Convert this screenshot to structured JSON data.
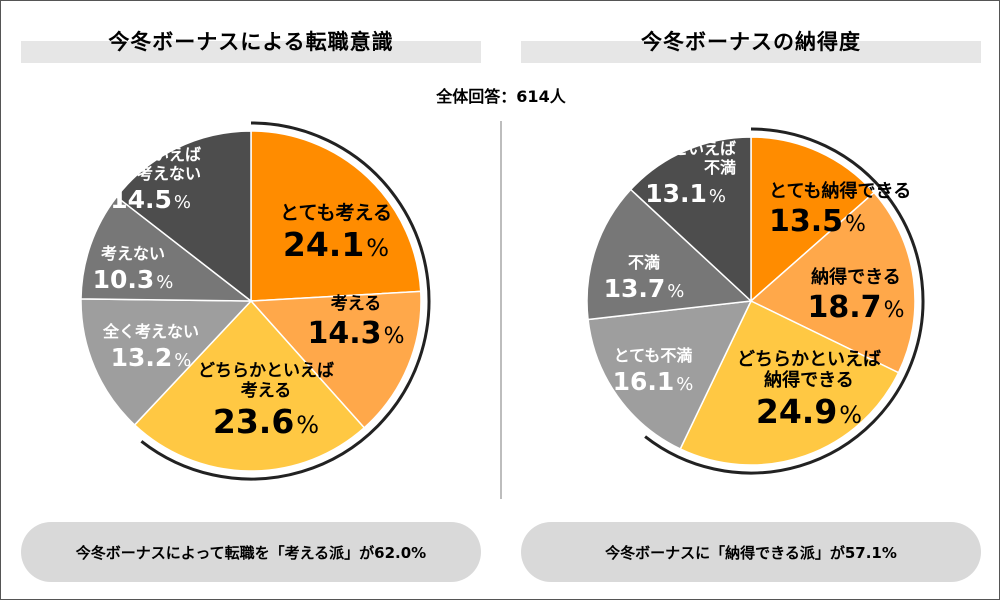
{
  "respondents": "全体回答：614人",
  "colors": {
    "orange": "#ff8c00",
    "light_orange": "#ffa84a",
    "yellow": "#ffc843",
    "gray_light": "#9e9e9e",
    "gray_mid": "#777777",
    "gray_dark": "#4d4d4d",
    "title_bar": "#e6e6e6",
    "pill": "#d9d9d9"
  },
  "left": {
    "title": "今冬ボーナスによる転職意識",
    "summary": "今冬ボーナスによって転職を「考える派」が62.0%"
  },
  "right": {
    "title": "今冬ボーナスの納得度",
    "summary": "今冬ボーナスに「納得できる派」が57.1%"
  },
  "chart_data": [
    {
      "type": "pie",
      "title": "今冬ボーナスによる転職意識",
      "unit": "%",
      "slices": [
        {
          "label": [
            "とても考える"
          ],
          "value": 24.1,
          "color": "#ff8c00"
        },
        {
          "label": [
            "考える"
          ],
          "value": 14.3,
          "color": "#ffa84a"
        },
        {
          "label": [
            "どちらかといえば",
            "考える"
          ],
          "value": 23.6,
          "color": "#ffc843"
        },
        {
          "label": [
            "全く考えない"
          ],
          "value": 13.2,
          "color": "#9e9e9e"
        },
        {
          "label": [
            "考えない"
          ],
          "value": 10.3,
          "color": "#777777"
        },
        {
          "label": [
            "どちらかといえば",
            "考えない"
          ],
          "value": 14.5,
          "color": "#4d4d4d"
        }
      ]
    },
    {
      "type": "pie",
      "title": "今冬ボーナスの納得度",
      "unit": "%",
      "slices": [
        {
          "label": [
            "とても納得できる"
          ],
          "value": 13.5,
          "color": "#ff8c00"
        },
        {
          "label": [
            "納得できる"
          ],
          "value": 18.7,
          "color": "#ffa84a"
        },
        {
          "label": [
            "どちらかといえば",
            "納得できる"
          ],
          "value": 24.9,
          "color": "#ffc843"
        },
        {
          "label": [
            "とても不満"
          ],
          "value": 16.1,
          "color": "#9e9e9e"
        },
        {
          "label": [
            "不満"
          ],
          "value": 13.7,
          "color": "#777777"
        },
        {
          "label": [
            "どちらかといえば",
            "不満"
          ],
          "value": 13.1,
          "color": "#4d4d4d"
        }
      ]
    }
  ]
}
